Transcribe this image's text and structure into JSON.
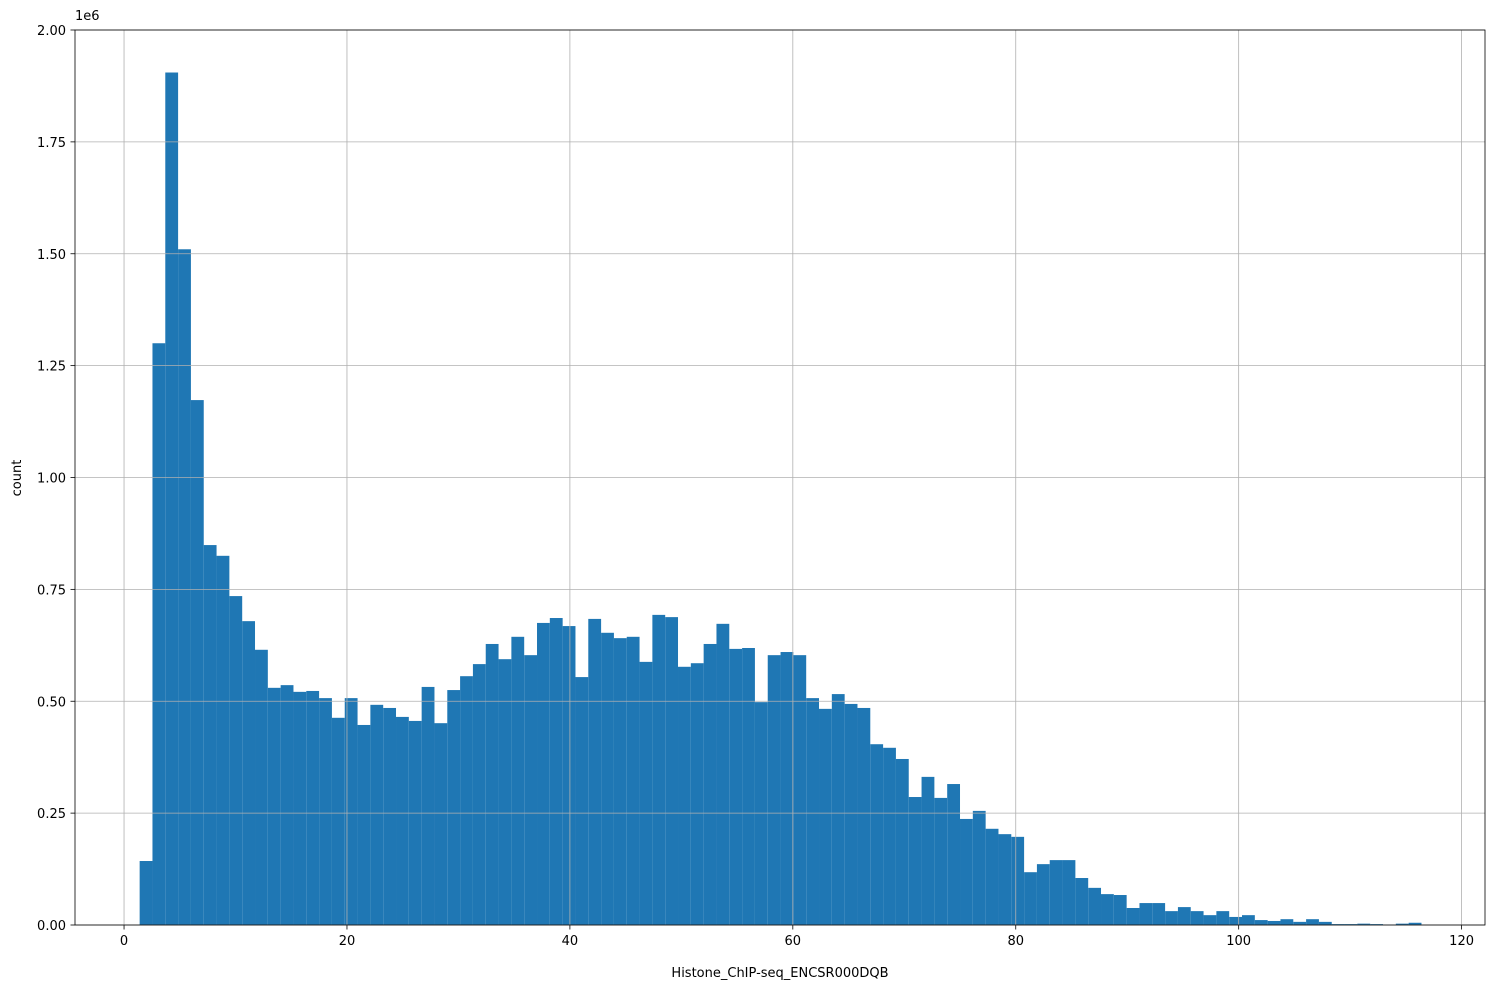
{
  "chart_data": {
    "type": "histogram",
    "x_label": "Histone_ChIP-seq_ENCSR000DQB",
    "y_label": "count",
    "y_offset_label": "1e6",
    "color": "#1f77b4",
    "grid": true,
    "bins": [
      1.4,
      2.55,
      3.7,
      4.85,
      6,
      7.15,
      8.3,
      9.45,
      10.6,
      11.75,
      12.9,
      14.05,
      15.2,
      16.35,
      17.5,
      18.65,
      19.8,
      20.95,
      22.1,
      23.25,
      24.4,
      25.55,
      26.7,
      27.85,
      29,
      30.15,
      31.3,
      32.45,
      33.6,
      34.75,
      35.9,
      37.05,
      38.2,
      39.35,
      40.5,
      41.65,
      42.8,
      43.95,
      45.1,
      46.25,
      47.4,
      48.55,
      49.7,
      50.85,
      52,
      53.15,
      54.3,
      55.45,
      56.6,
      57.75,
      58.9,
      60.05,
      61.2,
      62.35,
      63.5,
      64.65,
      65.8,
      66.95,
      68.1,
      69.25,
      70.4,
      71.55,
      72.7,
      73.85,
      75,
      76.15,
      77.3,
      78.45,
      79.6,
      80.75,
      81.9,
      83.05,
      84.2,
      85.35,
      86.5,
      87.65,
      88.8,
      89.95,
      91.1,
      92.25,
      93.4,
      94.55,
      95.7,
      96.85,
      98,
      99.15,
      100.3,
      101.45,
      102.6,
      103.75,
      104.9,
      106.05,
      107.2,
      108.35,
      109.5,
      110.65,
      111.8,
      112.95,
      114.1,
      115.25,
      116.4
    ],
    "values": [
      0.143,
      1.3,
      1.905,
      1.51,
      1.173,
      0.849,
      0.825,
      0.735,
      0.679,
      0.615,
      0.53,
      0.536,
      0.521,
      0.523,
      0.507,
      0.463,
      0.507,
      0.447,
      0.492,
      0.485,
      0.465,
      0.456,
      0.532,
      0.451,
      0.525,
      0.556,
      0.583,
      0.628,
      0.594,
      0.644,
      0.603,
      0.675,
      0.686,
      0.668,
      0.554,
      0.684,
      0.653,
      0.641,
      0.644,
      0.588,
      0.693,
      0.688,
      0.577,
      0.585,
      0.628,
      0.673,
      0.617,
      0.619,
      0.498,
      0.603,
      0.61,
      0.603,
      0.507,
      0.483,
      0.516,
      0.494,
      0.485,
      0.404,
      0.396,
      0.371,
      0.286,
      0.331,
      0.284,
      0.315,
      0.237,
      0.255,
      0.215,
      0.203,
      0.197,
      0.118,
      0.136,
      0.145,
      0.145,
      0.105,
      0.083,
      0.069,
      0.067,
      0.038,
      0.049,
      0.049,
      0.031,
      0.04,
      0.031,
      0.022,
      0.031,
      0.018,
      0.022,
      0.011,
      0.009,
      0.013,
      0.007,
      0.013,
      0.007,
      0.002,
      0.002,
      0.003,
      0.002,
      0.001,
      0.003,
      0.005
    ],
    "xlim": [
      -4.4,
      122.1
    ],
    "ylim": [
      0,
      2
    ],
    "xticks": [
      0,
      20,
      40,
      60,
      80,
      100,
      120
    ],
    "yticks": [
      {
        "value": 0,
        "label": "0.00"
      },
      0.25,
      {
        "value": 0.5,
        "label": "0.50"
      },
      0.75,
      {
        "value": 1,
        "label": "1.00"
      },
      1.25,
      {
        "value": 1.5,
        "label": "1.50"
      },
      1.75,
      {
        "value": 2,
        "label": "2.00"
      }
    ]
  }
}
